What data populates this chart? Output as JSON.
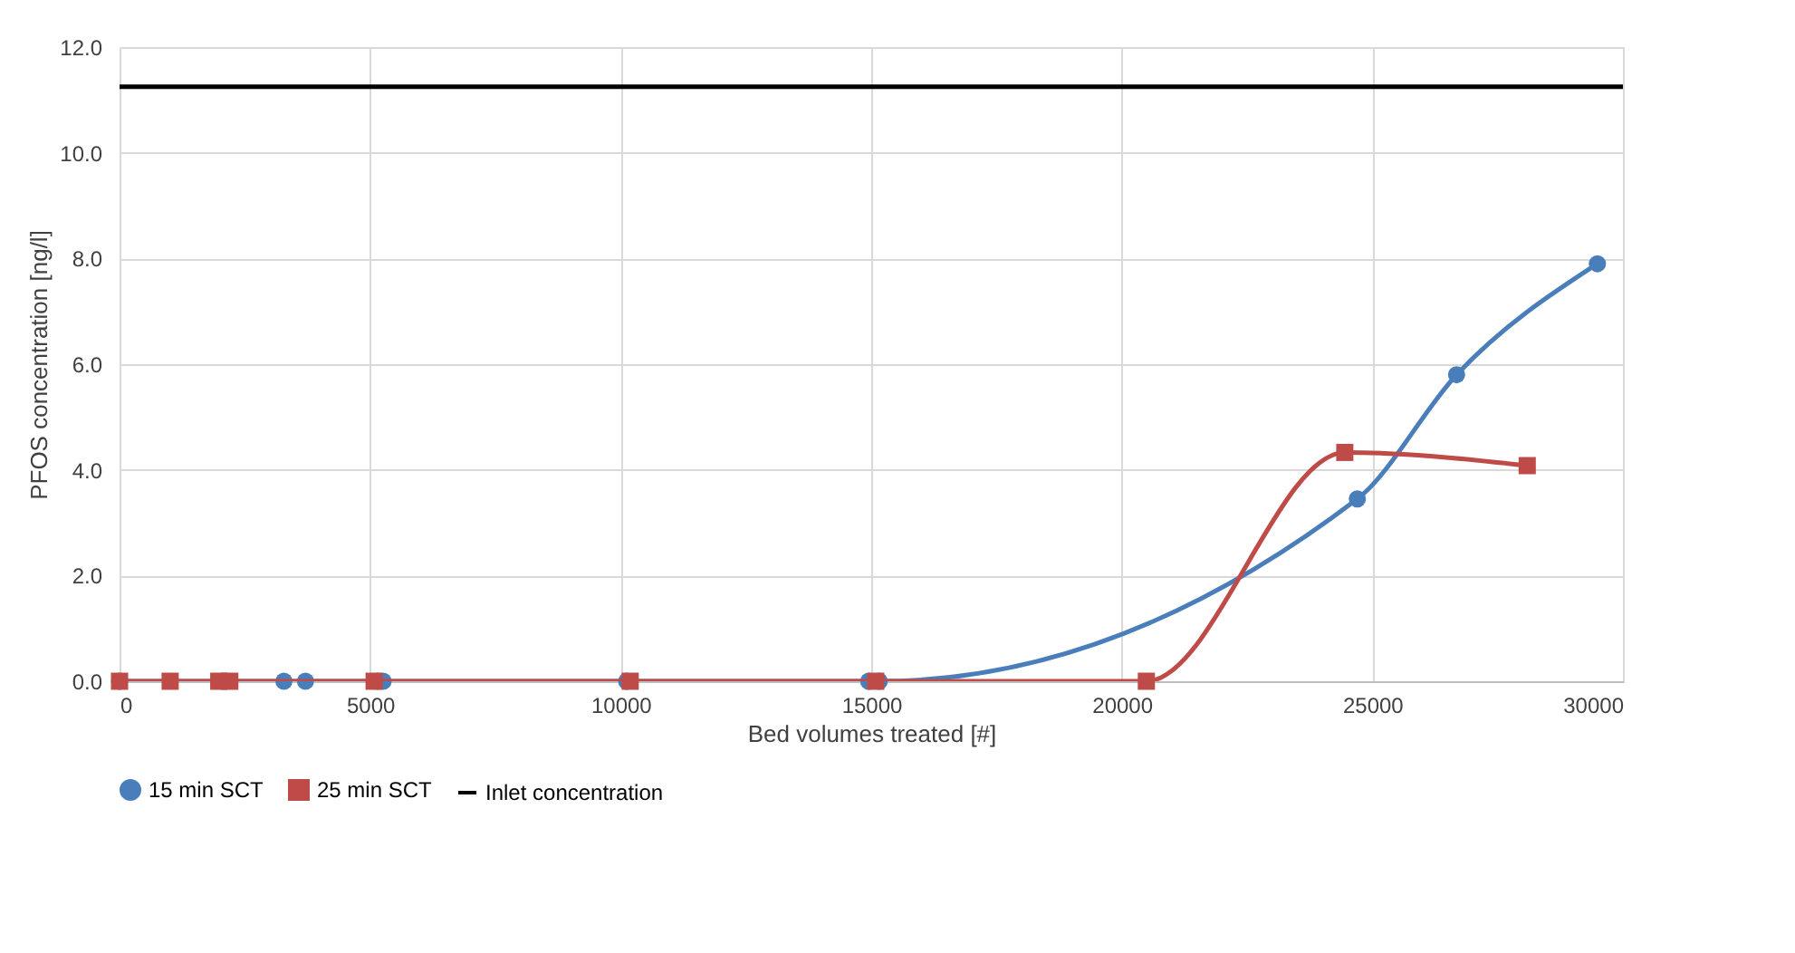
{
  "chart_data": {
    "type": "line",
    "xlabel": "Bed volumes treated [#]",
    "ylabel": "PFOS concentration [ng/l]",
    "xlim": [
      0,
      30000
    ],
    "xticks": [
      0,
      5000,
      10000,
      15000,
      20000,
      25000,
      30000
    ],
    "ylim": [
      0,
      12
    ],
    "yticks": [
      {
        "value": 0,
        "label": "0.0"
      },
      {
        "value": 2,
        "label": "2.0"
      },
      {
        "value": 4,
        "label": "4.0"
      },
      {
        "value": 6,
        "label": "6.0"
      },
      {
        "value": 8,
        "label": "8.0"
      },
      {
        "value": 10,
        "label": "10.0"
      },
      {
        "value": 12,
        "label": "12.0"
      }
    ],
    "grid": true,
    "legend": "bottom",
    "series": [
      {
        "name": "15 min SCT",
        "color": "#4a7ebb",
        "marker": "circle",
        "x": [
          0,
          3280,
          3710,
          5150,
          5260,
          10120,
          14950,
          15160,
          24700,
          26680,
          29490
        ],
        "values": [
          0,
          0,
          0,
          0,
          0,
          0,
          0,
          0,
          3.45,
          5.8,
          7.9
        ]
      },
      {
        "name": "25 min SCT",
        "color": "#be4b48",
        "marker": "square",
        "x": [
          0,
          1010,
          1980,
          2200,
          5080,
          10190,
          15090,
          20490,
          24450,
          28090
        ],
        "values": [
          0,
          0,
          0,
          0,
          0,
          0,
          0,
          0,
          4.33,
          4.08
        ]
      },
      {
        "name": "Inlet concentration",
        "color": "#000000",
        "marker": "none",
        "x": [
          0,
          30000
        ],
        "values": [
          11.25,
          11.25
        ]
      }
    ]
  }
}
